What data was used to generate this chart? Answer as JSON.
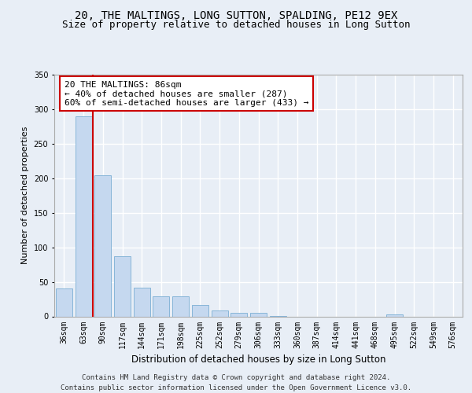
{
  "title1": "20, THE MALTINGS, LONG SUTTON, SPALDING, PE12 9EX",
  "title2": "Size of property relative to detached houses in Long Sutton",
  "xlabel": "Distribution of detached houses by size in Long Sutton",
  "ylabel": "Number of detached properties",
  "categories": [
    "36sqm",
    "63sqm",
    "90sqm",
    "117sqm",
    "144sqm",
    "171sqm",
    "198sqm",
    "225sqm",
    "252sqm",
    "279sqm",
    "306sqm",
    "333sqm",
    "360sqm",
    "387sqm",
    "414sqm",
    "441sqm",
    "468sqm",
    "495sqm",
    "522sqm",
    "549sqm",
    "576sqm"
  ],
  "values": [
    40,
    290,
    204,
    87,
    42,
    29,
    29,
    16,
    9,
    5,
    5,
    1,
    0,
    0,
    0,
    0,
    0,
    3,
    0,
    0,
    0
  ],
  "bar_color": "#c5d8ef",
  "bar_edge_color": "#7aaed4",
  "vline_x": 1.5,
  "vline_color": "#cc0000",
  "annotation_text": "20 THE MALTINGS: 86sqm\n← 40% of detached houses are smaller (287)\n60% of semi-detached houses are larger (433) →",
  "annotation_box_color": "#ffffff",
  "annotation_box_edge": "#cc0000",
  "ylim": [
    0,
    350
  ],
  "yticks": [
    0,
    50,
    100,
    150,
    200,
    250,
    300,
    350
  ],
  "background_color": "#e8eef6",
  "grid_color": "#ffffff",
  "footer": "Contains HM Land Registry data © Crown copyright and database right 2024.\nContains public sector information licensed under the Open Government Licence v3.0.",
  "title1_fontsize": 10,
  "title2_fontsize": 9,
  "xlabel_fontsize": 8.5,
  "ylabel_fontsize": 8,
  "tick_fontsize": 7,
  "annotation_fontsize": 8,
  "footer_fontsize": 6.5
}
